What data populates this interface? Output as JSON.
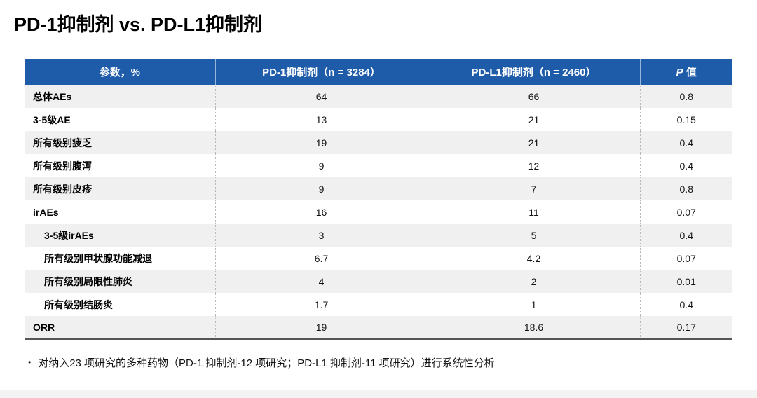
{
  "page": {
    "title": "PD-1抑制剂 vs. PD-L1抑制剂",
    "footnote_bullet": "•",
    "footnote": "对纳入23 项研究的多种药物（PD-1 抑制剂-12 项研究；PD-L1 抑制剂-11 项研究）进行系统性分析"
  },
  "table": {
    "headers": [
      "参数，%",
      "PD-1抑制剂（n = 3284）",
      "PD-L1抑制剂（n = 2460）"
    ],
    "p_header": {
      "italic": "P",
      "rest": " 值"
    },
    "rows": [
      {
        "label": "总体AEs",
        "pd1": "64",
        "pdl1": "66",
        "p": "0.8",
        "indent": false,
        "underline": false
      },
      {
        "label": "3-5级AE",
        "pd1": "13",
        "pdl1": "21",
        "p": "0.15",
        "indent": false,
        "underline": false
      },
      {
        "label": "所有级别疲乏",
        "pd1": "19",
        "pdl1": "21",
        "p": "0.4",
        "indent": false,
        "underline": false
      },
      {
        "label": "所有级别腹泻",
        "pd1": "9",
        "pdl1": "12",
        "p": "0.4",
        "indent": false,
        "underline": false
      },
      {
        "label": "所有级别皮疹",
        "pd1": "9",
        "pdl1": "7",
        "p": "0.8",
        "indent": false,
        "underline": false
      },
      {
        "label": "irAEs",
        "pd1": "16",
        "pdl1": "11",
        "p": "0.07",
        "indent": false,
        "underline": false
      },
      {
        "label": "3-5级irAEs",
        "pd1": "3",
        "pdl1": "5",
        "p": "0.4",
        "indent": true,
        "underline": true
      },
      {
        "label": "所有级别甲状腺功能减退",
        "pd1": "6.7",
        "pdl1": "4.2",
        "p": "0.07",
        "indent": true,
        "underline": false
      },
      {
        "label": "所有级别局限性肺炎",
        "pd1": "4",
        "pdl1": "2",
        "p": "0.01",
        "indent": true,
        "underline": false
      },
      {
        "label": "所有级别结肠炎",
        "pd1": "1.7",
        "pdl1": "1",
        "p": "0.4",
        "indent": true,
        "underline": false
      },
      {
        "label": "ORR",
        "pd1": "19",
        "pdl1": "18.6",
        "p": "0.17",
        "indent": false,
        "underline": false
      }
    ]
  },
  "colors": {
    "header_bg": "#1e5caa",
    "alt_row_bg": "#f0f0f0",
    "title_color": "#000000"
  }
}
